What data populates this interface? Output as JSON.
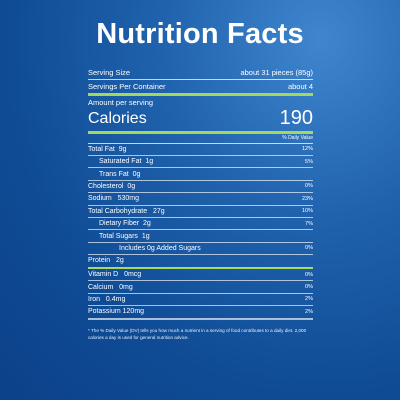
{
  "title": "Nutrition Facts",
  "serving": {
    "size_label": "Serving Size",
    "size_value": "about 31 pieces (85g)",
    "per_container_label": "Servings Per Container",
    "per_container_value": "about 4"
  },
  "amount_per_serving": "Amount per serving",
  "calories": {
    "label": "Calories",
    "value": "190"
  },
  "daily_value_header": "% Daily Value",
  "nutrients": [
    {
      "label": "Total Fat",
      "amount": "9g",
      "dv": "12%"
    },
    {
      "label": "Saturated Fat",
      "amount": "1g",
      "dv": "5%"
    },
    {
      "label": "Trans Fat",
      "amount": "0g",
      "dv": ""
    },
    {
      "label": "Cholesterol",
      "amount": "0g",
      "dv": "0%"
    },
    {
      "label": "Sodium",
      "amount": "530mg",
      "dv": "23%"
    },
    {
      "label": "Total Carbohydrate",
      "amount": "27g",
      "dv": "10%"
    },
    {
      "label": "Dietary Fiber",
      "amount": "2g",
      "dv": "7%"
    },
    {
      "label": "Total Sugars",
      "amount": "1g",
      "dv": ""
    },
    {
      "label": "Includes 0g Added Sugars",
      "amount": "",
      "dv": "0%"
    },
    {
      "label": "Protein",
      "amount": "2g",
      "dv": ""
    },
    {
      "label": "Vitamin D",
      "amount": "0mcg",
      "dv": "0%"
    },
    {
      "label": "Calcium",
      "amount": "0mg",
      "dv": "0%"
    },
    {
      "label": "Iron",
      "amount": "0.4mg",
      "dv": "2%"
    },
    {
      "label": "Potassium",
      "amount": "120mg",
      "dv": "2%"
    }
  ],
  "footnote": "* The % Daily Value (DV) tells you how much a nutrient in a serving of food contributes to a daily diet. 2,000 calories a day is used for general nutrition advice."
}
